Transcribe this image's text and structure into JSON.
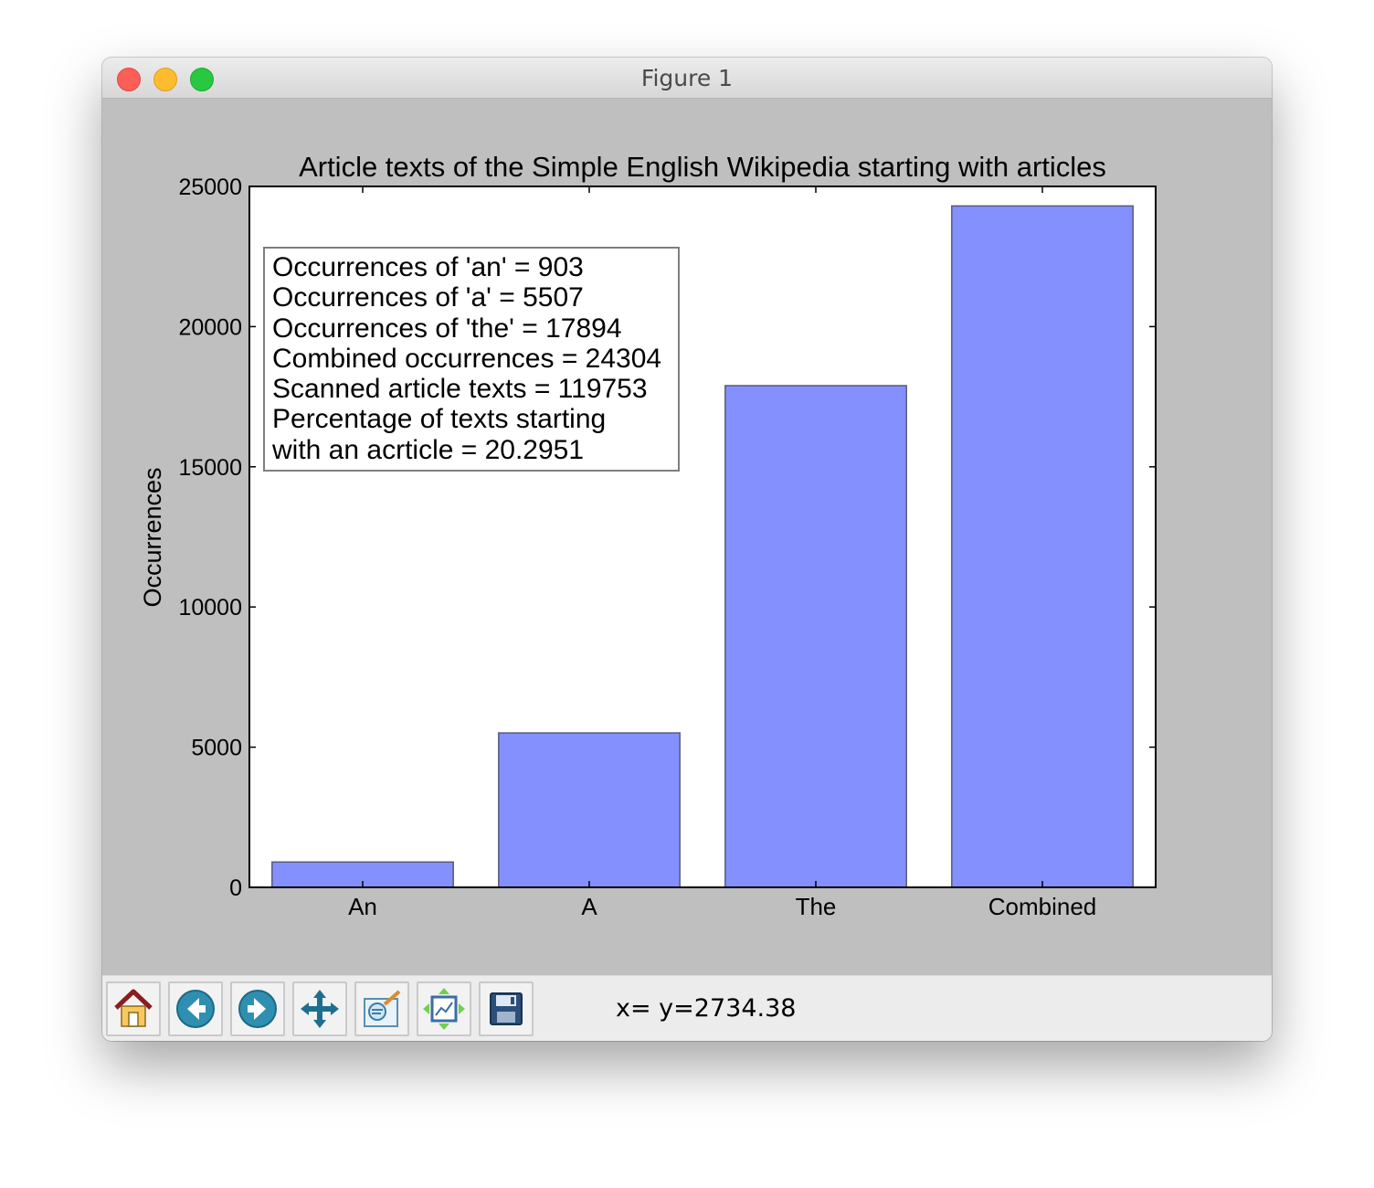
{
  "window": {
    "title": "Figure 1"
  },
  "chart_data": {
    "type": "bar",
    "title": "Article texts of the Simple English Wikipedia starting with articles",
    "xlabel": "",
    "ylabel": "Occurrences",
    "categories": [
      "An",
      "A",
      "The",
      "Combined"
    ],
    "values": [
      903,
      5507,
      17894,
      24304
    ],
    "ylim": [
      0,
      25000
    ],
    "yticks": [
      "0",
      "5000",
      "10000",
      "15000",
      "20000",
      "25000"
    ],
    "grid": false,
    "bar_color": "#8490fd",
    "annotation_lines": [
      "Occurrences of 'an' = 903",
      "Occurrences of 'a' = 5507",
      "Occurrences of 'the' = 17894",
      "Combined occurrences = 24304",
      "Scanned article texts = 119753",
      "Percentage of texts starting",
      "with an acrticle = 20.2951"
    ],
    "annotation_placement": "top-left"
  },
  "toolbar": {
    "buttons": [
      {
        "name": "home",
        "icon": "home-icon"
      },
      {
        "name": "back",
        "icon": "arrow-left-icon"
      },
      {
        "name": "forward",
        "icon": "arrow-right-icon"
      },
      {
        "name": "pan",
        "icon": "move-icon"
      },
      {
        "name": "zoom",
        "icon": "zoom-rect-icon"
      },
      {
        "name": "configure-subplots",
        "icon": "subplots-icon"
      },
      {
        "name": "save",
        "icon": "floppy-disk-icon"
      }
    ],
    "coords_text": "x= y=2734.38"
  }
}
